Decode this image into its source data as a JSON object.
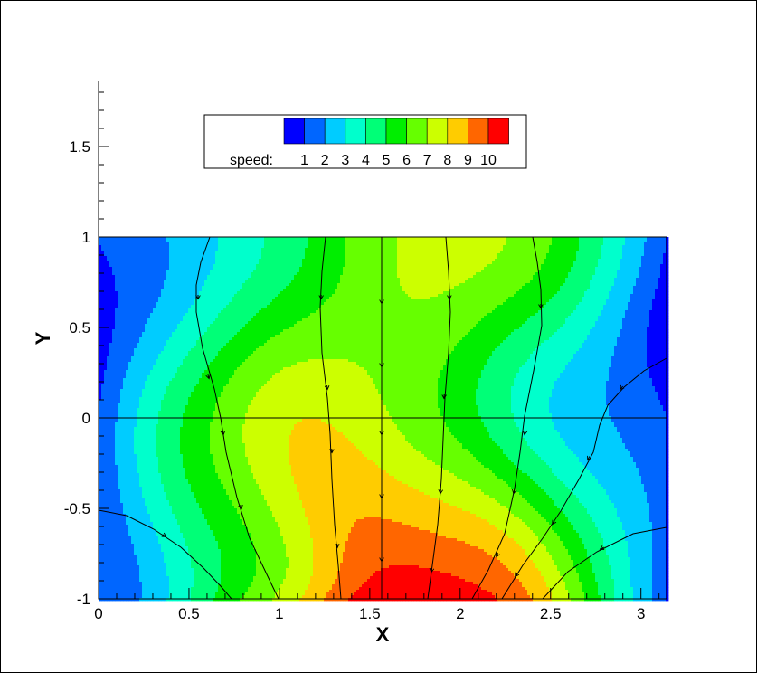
{
  "chart_data": {
    "type": "heatmap",
    "xlabel": "X",
    "ylabel": "Y",
    "xlim": [
      0,
      3.14159
    ],
    "ylim": [
      -1,
      1.85
    ],
    "data_ylim": [
      -1,
      1
    ],
    "x_ticks": [
      {
        "value": 0,
        "label": "0"
      },
      {
        "value": 0.5,
        "label": "0.5"
      },
      {
        "value": 1,
        "label": "1"
      },
      {
        "value": 1.5,
        "label": "1.5"
      },
      {
        "value": 2,
        "label": "2"
      },
      {
        "value": 2.5,
        "label": "2.5"
      },
      {
        "value": 3,
        "label": "3"
      }
    ],
    "y_ticks": [
      {
        "value": -1,
        "label": "-1"
      },
      {
        "value": -0.5,
        "label": "-0.5"
      },
      {
        "value": 0,
        "label": "0"
      },
      {
        "value": 0.5,
        "label": "0.5"
      },
      {
        "value": 1,
        "label": "1"
      },
      {
        "value": 1.5,
        "label": "1.5"
      }
    ],
    "legend": {
      "title": "speed:",
      "placement": "top-left",
      "levels": [
        "1",
        "2",
        "3",
        "4",
        "5",
        "6",
        "7",
        "8",
        "9",
        "10"
      ],
      "colors": [
        "#0000ff",
        "#0066ff",
        "#00ccff",
        "#00ffcc",
        "#00ff77",
        "#00ee00",
        "#66ff00",
        "#ccff00",
        "#ffcc00",
        "#ff6600",
        "#ff0000"
      ]
    },
    "contour_levels": [
      1,
      2,
      3,
      4,
      5,
      6,
      7,
      8,
      9,
      10
    ],
    "grid": false,
    "centerline_y": 0
  }
}
